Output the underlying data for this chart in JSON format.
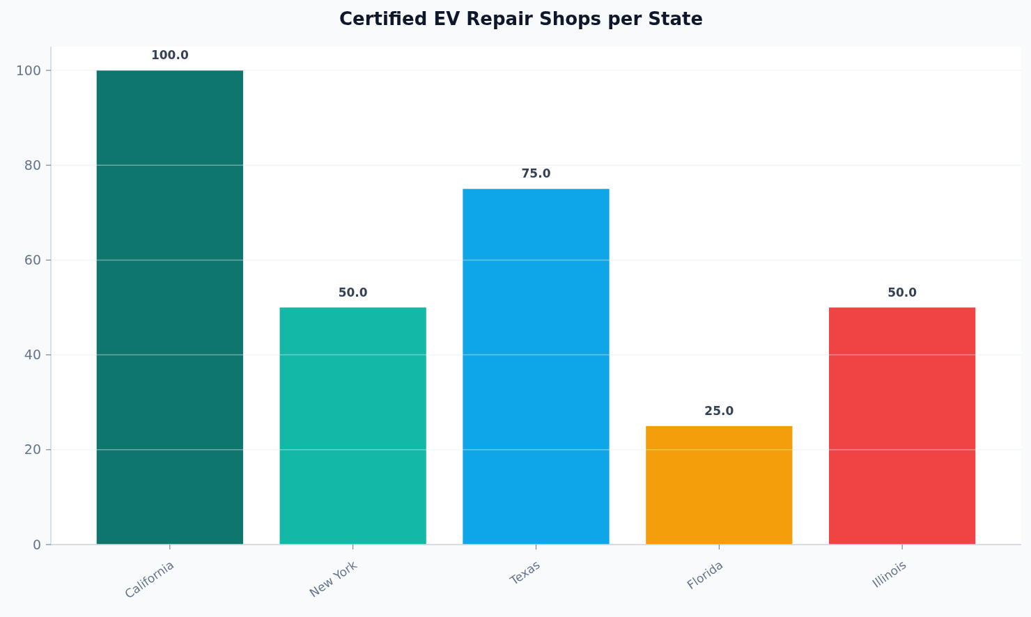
{
  "chart_data": {
    "type": "bar",
    "title": "Certified EV Repair Shops per State",
    "categories": [
      "California",
      "New York",
      "Texas",
      "Florida",
      "Illinois"
    ],
    "values": [
      100,
      50,
      75,
      25,
      50
    ],
    "colors": [
      "#0f766e",
      "#14b8a6",
      "#0ea5e9",
      "#f59e0b",
      "#ef4444"
    ],
    "value_labels": [
      "100.0",
      "50.0",
      "75.0",
      "25.0",
      "50.0"
    ],
    "ylim": [
      0,
      105
    ],
    "yticks": [
      0,
      20,
      40,
      60,
      80,
      100
    ],
    "grid": "y"
  }
}
